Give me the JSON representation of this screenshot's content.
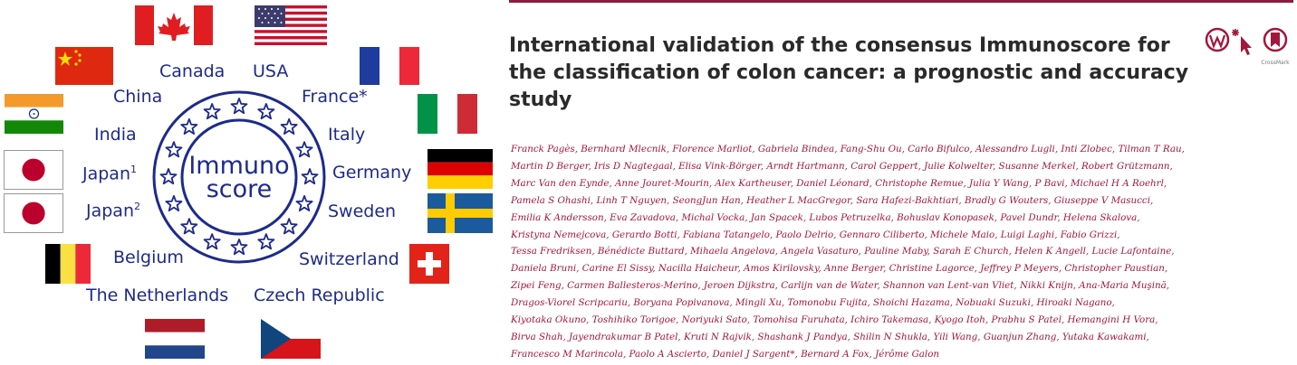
{
  "infographic": {
    "logo_text_line1": "Immuno",
    "logo_text_line2": "score",
    "countries": {
      "canada": "Canada",
      "usa": "USA",
      "china": "China",
      "france": "France*",
      "india": "India",
      "italy": "Italy",
      "japan1": "Japan",
      "japan1_sup": "1",
      "germany": "Germany",
      "japan2": "Japan",
      "japan2_sup": "2",
      "sweden": "Sweden",
      "belgium": "Belgium",
      "switzerland": "Switzerland",
      "netherlands": "The Netherlands",
      "czech": "Czech Republic"
    },
    "colors": {
      "label": "#1e2a8c",
      "logo_blue": "#1e2a8c"
    }
  },
  "article": {
    "title_lines": [
      "International validation of the consensus Immunoscore for",
      "the classification of colon cancer: a prognostic and accuracy",
      "study"
    ],
    "author_lines": [
      "Franck Pagès, Bernhard Mlecnik, Florence Marliot, Gabriela Bindea, Fang-Shu Ou, Carlo Bifulco, Alessandro Lugli, Inti Zlobec, Tilman T Rau,",
      "Martin D Berger, Iris D Nagtegaal, Elisa Vink-Börger, Arndt Hartmann, Carol Geppert, Julie Kolwelter, Susanne Merkel, Robert Grützmann,",
      "Marc Van den Eynde, Anne Jouret-Mourin, Alex Kartheuser, Daniel Léonard, Christophe Remue, Julia Y Wang, P Bavi, Michael H A Roehrl,",
      "Pamela S Ohashi, Linh T Nguyen, SeongJun Han, Heather L MacGregor, Sara Hafezi-Bakhtiari, Bradly G Wouters, Giuseppe V Masucci,",
      "Emilia K Andersson, Eva Zavadova, Michal Vocka, Jan Spacek, Lubos Petruzelka, Bohuslav Konopasek, Pavel Dundr, Helena Skalova,",
      "Kristyna Nemejcova, Gerardo Botti, Fabiana Tatangelo, Paolo Delrio, Gennaro Ciliberto, Michele Maio, Luigi Laghi, Fabio Grizzi,",
      "Tessa Fredriksen, Bénédicte Buttard, Mihaela Angelova, Angela Vasaturo, Pauline Maby, Sarah E Church, Helen K Angell, Lucie Lafontaine,",
      "Daniela Bruni, Carine El Sissy, Nacilla Haicheur, Amos Kirilovsky, Anne Berger, Christine Lagorce, Jeffrey P Meyers, Christopher Paustian,",
      "Zipei Feng, Carmen Ballesteros-Merino, Jeroen Dijkstra, Carlijn van de Water, Shannon van Lent-van Vliet, Nikki Knijn, Ana-Maria Muşină,",
      "Dragos-Viorel Scripcariu, Boryana Popivanova, Mingli Xu, Tomonobu Fujita, Shoichi Hazama, Nobuaki Suzuki, Hiroaki Nagano,",
      "Kiyotaka Okuno, Toshihiko Torigoe, Noriyuki Sato, Tomohisa Furuhata, Ichiro Takemasa, Kyogo Itoh, Prabhu S Patel, Hemangini H Vora,",
      "Birva Shah, Jayendrakumar B Patel, Kruti N Rajvik, Shashank J Pandya, Shilin N Shukla, Yili Wang, Guanjun Zhang, Yutaka Kawakami,",
      "Francesco M Marincola, Paolo A Ascierto, Daniel J Sargent*, Bernard A Fox, Jérôme Galon"
    ],
    "crossmark_label": "CrossMark",
    "colors": {
      "rule": "#8a1d3d",
      "authors": "#a2173c",
      "title": "#2a2a2a"
    }
  }
}
